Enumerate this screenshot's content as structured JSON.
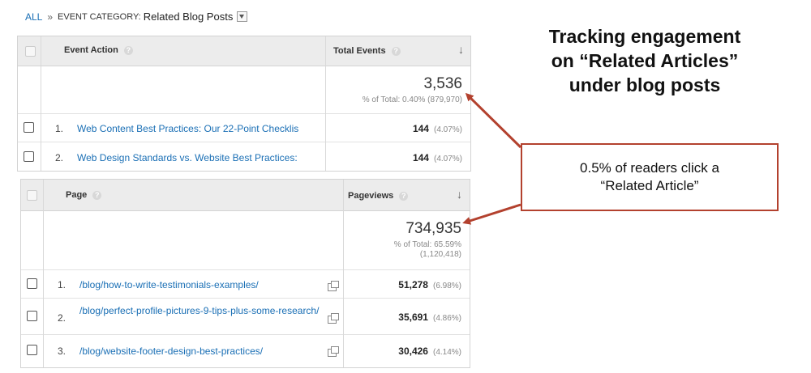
{
  "breadcrumb": {
    "all": "ALL",
    "separator": "»",
    "category_label": "EVENT CATEGORY:",
    "category_value": "Related Blog Posts"
  },
  "table1": {
    "col1": "Event Action",
    "col2": "Total Events",
    "total_value": "3,536",
    "total_pct": "% of Total: 0.40% (879,970)",
    "rows": [
      {
        "num": "1.",
        "label": "Web Content Best Practices: Our 22-Point Checklis",
        "value": "144",
        "pct": "(4.07%)"
      },
      {
        "num": "2.",
        "label": "Web Design Standards vs. Website Best Practices:",
        "value": "144",
        "pct": "(4.07%)"
      }
    ]
  },
  "table2": {
    "col1": "Page",
    "col2": "Pageviews",
    "total_value": "734,935",
    "total_pct_line1": "% of Total: 65.59%",
    "total_pct_line2": "(1,120,418)",
    "rows": [
      {
        "num": "1.",
        "label": "/blog/how-to-write-testimonials-examples/",
        "value": "51,278",
        "pct": "(6.98%)"
      },
      {
        "num": "2.",
        "label": "/blog/perfect-profile-pictures-9-tips-plus-some-research/",
        "value": "35,691",
        "pct": "(4.86%)"
      },
      {
        "num": "3.",
        "label": "/blog/website-footer-design-best-practices/",
        "value": "30,426",
        "pct": "(4.14%)"
      }
    ]
  },
  "annotation": {
    "title_lines": [
      "Tracking engagement",
      "on “Related Articles”",
      "under blog posts"
    ],
    "callout_lines": [
      "0.5% of readers click a",
      "“Related Article”"
    ],
    "accent_color": "#b3412e"
  },
  "icons": {
    "help": "help-circle-icon",
    "sort": "arrow-down-icon",
    "external": "open-in-new-icon",
    "dropdown": "chevron-down-icon"
  }
}
